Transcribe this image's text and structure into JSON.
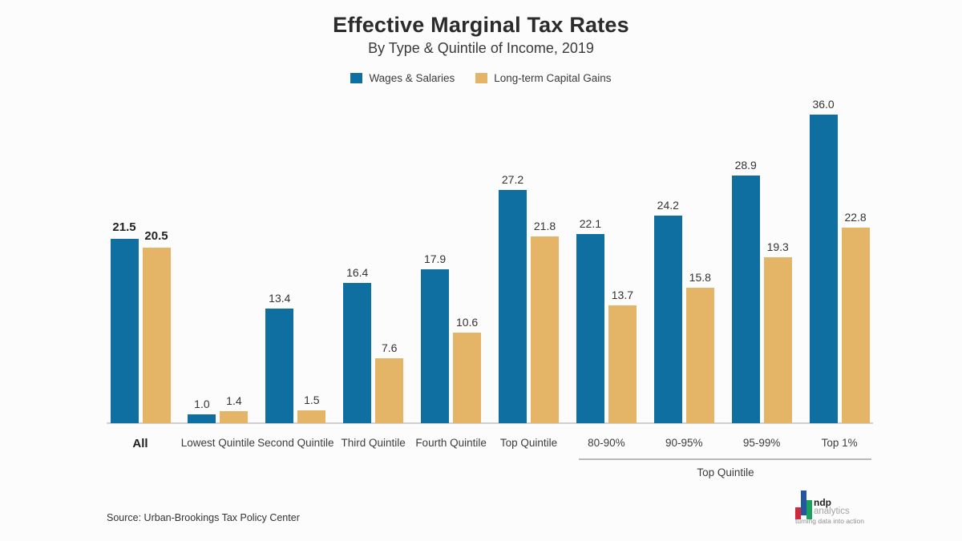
{
  "header": {
    "title": "Effective Marginal Tax Rates",
    "subtitle": "By Type & Quintile of Income, 2019"
  },
  "chart_data": {
    "type": "bar",
    "categories": [
      "All",
      "Lowest Quintile",
      "Second Quintile",
      "Third Quintile",
      "Fourth Quintile",
      "Top Quintile",
      "80-90%",
      "90-95%",
      "95-99%",
      "Top 1%"
    ],
    "series": [
      {
        "name": "Wages & Salaries",
        "color": "#0e6fa0",
        "values": [
          21.5,
          1.0,
          13.4,
          16.4,
          17.9,
          27.2,
          22.1,
          24.2,
          28.9,
          36.0
        ]
      },
      {
        "name": "Long-term Capital Gains",
        "color": "#e4b566",
        "values": [
          20.5,
          1.4,
          1.5,
          7.6,
          10.6,
          21.8,
          13.7,
          15.8,
          19.3,
          22.8
        ]
      }
    ],
    "ylim": [
      0,
      38
    ],
    "grid": false,
    "y_axis_shown": false,
    "legend_position": "top-center",
    "value_labels": true,
    "emphasized_category": "All",
    "group_annotation": {
      "label": "Top Quintile",
      "categories": [
        "80-90%",
        "90-95%",
        "95-99%",
        "Top 1%"
      ]
    }
  },
  "source": "Source: Urban-Brookings Tax Policy Center",
  "logo": {
    "name": "ndp",
    "sub": "analytics",
    "tagline": "turning data into action",
    "colors": {
      "red": "#cf2a3c",
      "blue": "#2456a2",
      "green": "#1ba05e"
    }
  }
}
